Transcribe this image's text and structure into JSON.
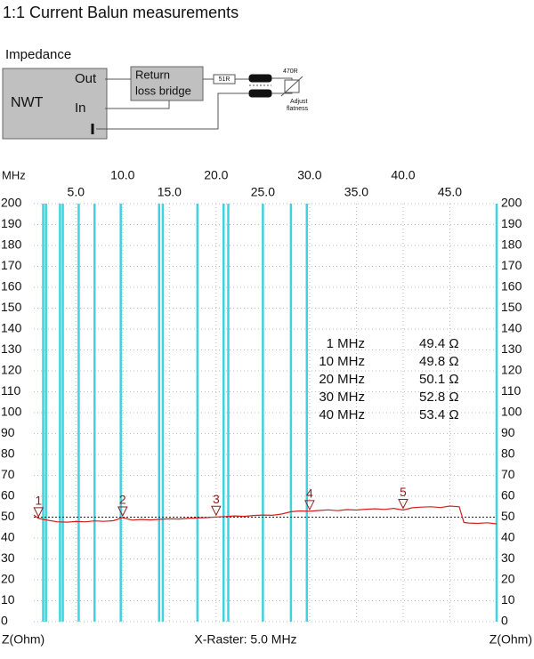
{
  "header": {
    "title": "1:1 Current Balun measurements",
    "subtitle": "Impedance"
  },
  "diagram": {
    "device": "NWT",
    "out": "Out",
    "in": "In",
    "bridge_line1": "Return",
    "bridge_line2": "loss bridge",
    "resistor1": "51R",
    "resistor2": "470R",
    "adjust_line1": "Adjust",
    "adjust_line2": "flatness"
  },
  "chart_data": {
    "type": "line",
    "x_unit": "MHz",
    "ylabel": "Z(Ohm)",
    "xlabel": "X-Raster: 5.0 MHz",
    "x": [
      0.5,
      1,
      2,
      3,
      4,
      5,
      6,
      7,
      8,
      9,
      10,
      11,
      12,
      13,
      14,
      15,
      16,
      17,
      18,
      19,
      20,
      21,
      22,
      23,
      24,
      25,
      26,
      27,
      28,
      29,
      30,
      31,
      32,
      33,
      34,
      35,
      36,
      37,
      38,
      39,
      40,
      41,
      42,
      43,
      44,
      45,
      46,
      46.5,
      47,
      48,
      49,
      50
    ],
    "series": [
      {
        "color": "#d42020",
        "values": [
          51,
          49.4,
          48.5,
          47.8,
          47.6,
          47.9,
          47.8,
          48.2,
          48.0,
          48.3,
          49.8,
          48.6,
          48.9,
          48.7,
          49.0,
          49.2,
          49.1,
          49.4,
          49.6,
          49.8,
          50.1,
          50.3,
          50.6,
          50.4,
          50.8,
          51.0,
          50.9,
          51.5,
          52.6,
          53.0,
          52.8,
          53.2,
          53.5,
          53.1,
          53.6,
          53.4,
          53.8,
          54.0,
          53.7,
          54.2,
          53.4,
          54.5,
          54.8,
          55.0,
          54.6,
          55.3,
          55.0,
          47.5,
          47.2,
          47.0,
          47.3,
          46.8
        ]
      }
    ],
    "xlim": [
      0.5,
      50
    ],
    "ylim": [
      0,
      200
    ],
    "xticks": [
      {
        "value": 5,
        "label": "5.0"
      },
      {
        "value": 10,
        "label": "10.0"
      },
      {
        "value": 15,
        "label": "15.0"
      },
      {
        "value": 20,
        "label": "20.0"
      },
      {
        "value": 25,
        "label": "25.0"
      },
      {
        "value": 30,
        "label": "30.0"
      },
      {
        "value": 35,
        "label": "35.0"
      },
      {
        "value": 40,
        "label": "40.0"
      },
      {
        "value": 45,
        "label": "45.0"
      }
    ],
    "yticks": [
      0,
      10,
      20,
      30,
      40,
      50,
      60,
      70,
      80,
      90,
      100,
      110,
      120,
      130,
      140,
      150,
      160,
      170,
      180,
      190,
      200
    ],
    "grid": true,
    "reference": 50,
    "highlight_color": "#3fd3e0",
    "highlights": [
      1.5,
      1.8,
      3.3,
      3.6,
      5.3,
      7.0,
      9.8,
      13.9,
      14.3,
      18.0,
      20.8,
      21.3,
      25.0,
      28.0,
      29.7,
      50.0
    ],
    "markers": {
      "color": "#8b2020",
      "labels": [
        "1",
        "2",
        "3",
        "4",
        "5"
      ],
      "x": [
        1,
        10,
        20,
        30,
        40
      ],
      "freq_labels": [
        "1 MHz",
        "10 MHz",
        "20 MHz",
        "30 MHz",
        "40 MHz"
      ],
      "values": [
        49.4,
        49.8,
        50.1,
        52.8,
        53.4
      ],
      "value_labels": [
        "49.4 Ω",
        "49.8 Ω",
        "50.1 Ω",
        "52.8 Ω",
        "53.4 Ω"
      ]
    }
  }
}
